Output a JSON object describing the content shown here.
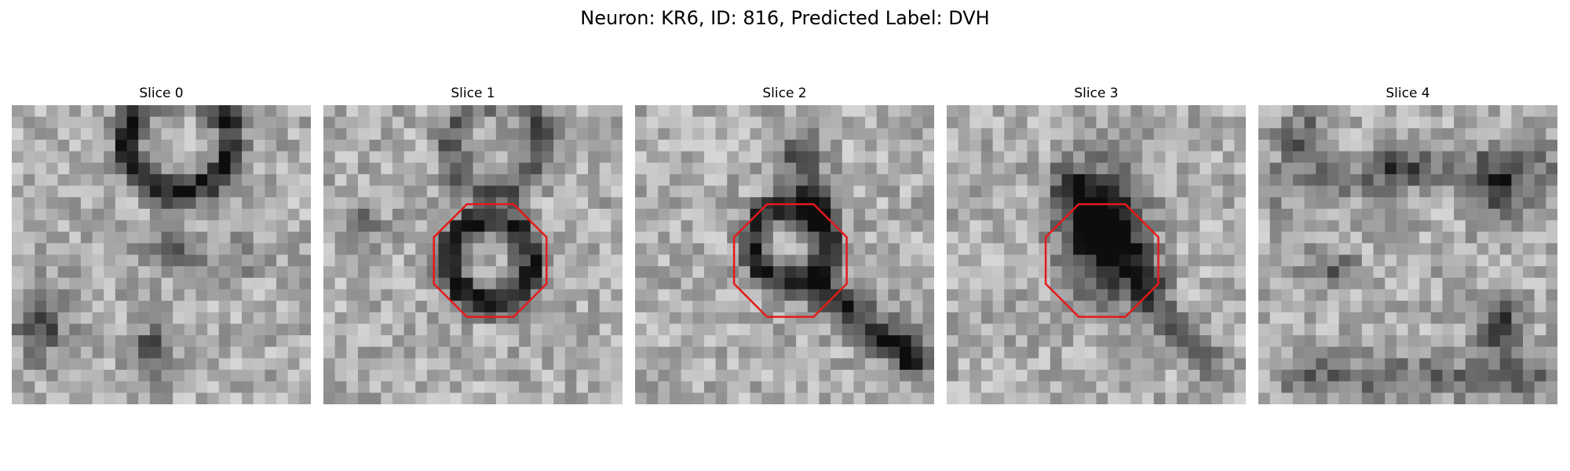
{
  "figure": {
    "title": "Neuron: KR6, ID: 816, Predicted Label: DVH"
  },
  "panels": [
    {
      "title": "Slice 0",
      "roi_marked": false
    },
    {
      "title": "Slice 1",
      "roi_marked": true
    },
    {
      "title": "Slice 2",
      "roi_marked": true
    },
    {
      "title": "Slice 3",
      "roi_marked": true
    },
    {
      "title": "Slice 4",
      "roi_marked": false
    }
  ],
  "colors": {
    "roi_outline": "#e31a1c",
    "colormap": "grayscale"
  }
}
